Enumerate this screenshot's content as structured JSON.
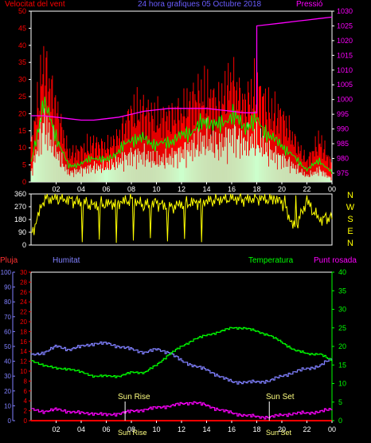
{
  "title": "24 hora grafiques  05 Octubre 2018",
  "colors": {
    "wind": "#ff0000",
    "gust_avg": "#00ff00",
    "gust_low": "#ccffcc",
    "pressure": "#ff00ff",
    "direction": "#ffff00",
    "rain": "#ff0000",
    "humidity": "#8080ff",
    "temperature": "#00ff00",
    "dewpoint": "#ff00ff",
    "axis": "#ffffff"
  },
  "hour_ticks": [
    "02",
    "04",
    "06",
    "08",
    "10",
    "12",
    "14",
    "16",
    "18",
    "20",
    "22",
    "00"
  ],
  "chart_data": [
    {
      "type": "area",
      "id": "wind",
      "left_label": "Velocitat del vent",
      "right_label": "Pressió",
      "y_left_ticks": [
        0,
        5,
        10,
        15,
        20,
        25,
        30,
        35,
        40,
        45,
        50
      ],
      "y_right_ticks": [
        975,
        980,
        985,
        990,
        995,
        1000,
        1005,
        1010,
        1015,
        1020,
        1025,
        1030
      ],
      "y_left_range": [
        0,
        50
      ],
      "y_right_range": [
        972,
        1030
      ],
      "x_hours": [
        0,
        1,
        2,
        3,
        4,
        5,
        6,
        7,
        8,
        9,
        10,
        11,
        12,
        13,
        14,
        15,
        16,
        17,
        18,
        19,
        20,
        21,
        22,
        23,
        24
      ],
      "series": [
        {
          "values": [
            10,
            34,
            22,
            8,
            9,
            11,
            10,
            13,
            20,
            20,
            18,
            19,
            20,
            24,
            25,
            22,
            30,
            22,
            27,
            20,
            19,
            12,
            6,
            12,
            5
          ]
        },
        {
          "values": [
            6,
            26,
            15,
            5,
            6,
            8,
            7,
            10,
            14,
            14,
            12,
            13,
            15,
            17,
            20,
            18,
            22,
            18,
            20,
            15,
            12,
            8,
            4,
            7,
            3
          ]
        },
        {
          "values": [
            3,
            20,
            10,
            3,
            4,
            5,
            5,
            7,
            9,
            9,
            7,
            8,
            10,
            12,
            14,
            12,
            16,
            13,
            14,
            10,
            8,
            5,
            2,
            4,
            1
          ]
        },
        {
          "values": [
            994.5,
            994.5,
            994,
            993.5,
            993,
            993,
            993.5,
            994,
            995,
            996,
            996.5,
            997,
            997,
            997,
            997,
            996.5,
            996,
            995.5,
            1025,
            1025.5,
            1026,
            1026.5,
            1027,
            1027.5,
            1028
          ]
        }
      ]
    },
    {
      "type": "line",
      "id": "direction",
      "right_labels": [
        "N",
        "W",
        "S",
        "E",
        "N"
      ],
      "y_ticks": [
        360,
        270,
        180,
        90,
        0
      ],
      "y_range": [
        0,
        360
      ],
      "x_hours": [
        0,
        1,
        2,
        3,
        4,
        5,
        6,
        7,
        8,
        9,
        10,
        11,
        12,
        13,
        14,
        15,
        16,
        17,
        18,
        19,
        20,
        21,
        22,
        23,
        24
      ],
      "values": [
        60,
        320,
        330,
        320,
        300,
        280,
        290,
        300,
        320,
        280,
        300,
        260,
        290,
        300,
        310,
        320,
        330,
        320,
        330,
        320,
        310,
        120,
        300,
        180,
        200
      ]
    },
    {
      "type": "line",
      "id": "climate",
      "labels": {
        "rain": "Pluja",
        "humidity": "Humitat",
        "temperature": "Temperatura",
        "dewpoint": "Punt rosada"
      },
      "y_left_rain_ticks": [
        0,
        2,
        4,
        6,
        8,
        10,
        12,
        14,
        16,
        18,
        20,
        22,
        24,
        26,
        28,
        30
      ],
      "y_left_hum_ticks": [
        0,
        10,
        20,
        30,
        40,
        50,
        60,
        70,
        80,
        90,
        100
      ],
      "y_right_ticks": [
        0,
        5,
        10,
        15,
        20,
        25,
        30,
        35,
        40
      ],
      "hum_range": [
        0,
        100
      ],
      "temp_range": [
        0,
        40
      ],
      "x_hours": [
        0,
        1,
        2,
        3,
        4,
        5,
        6,
        7,
        8,
        9,
        10,
        11,
        12,
        13,
        14,
        15,
        16,
        17,
        18,
        19,
        20,
        21,
        22,
        23,
        24
      ],
      "humidity": [
        44,
        46,
        50,
        48,
        50,
        52,
        52,
        50,
        48,
        46,
        48,
        46,
        40,
        37,
        34,
        30,
        26,
        26,
        26,
        27,
        30,
        33,
        35,
        37,
        42
      ],
      "temperature": [
        16,
        15,
        14,
        14,
        13,
        12,
        12,
        12,
        13,
        13,
        15,
        18,
        20,
        22,
        23,
        24,
        25,
        25,
        24,
        23,
        21,
        19,
        18,
        18,
        16
      ],
      "dewpoint": [
        3,
        2.5,
        3,
        2.5,
        2,
        2,
        1.5,
        2,
        2.5,
        3,
        3.5,
        4,
        4.5,
        5,
        4,
        3,
        2,
        1.5,
        1,
        1,
        1.5,
        2,
        2,
        2.5,
        3
      ],
      "rain": [
        0,
        0,
        0,
        0,
        0,
        0,
        0,
        0,
        0,
        0,
        0,
        0,
        0,
        0,
        0,
        0,
        0,
        0,
        0,
        0,
        0,
        0,
        0,
        0,
        0
      ],
      "sun_rise": {
        "label": "Sun Rise",
        "hour": 7.5
      },
      "sun_set": {
        "label": "Sun Set",
        "hour": 19.0
      },
      "bottom_labels": [
        "Sun Rise",
        "Sun Set"
      ]
    }
  ]
}
